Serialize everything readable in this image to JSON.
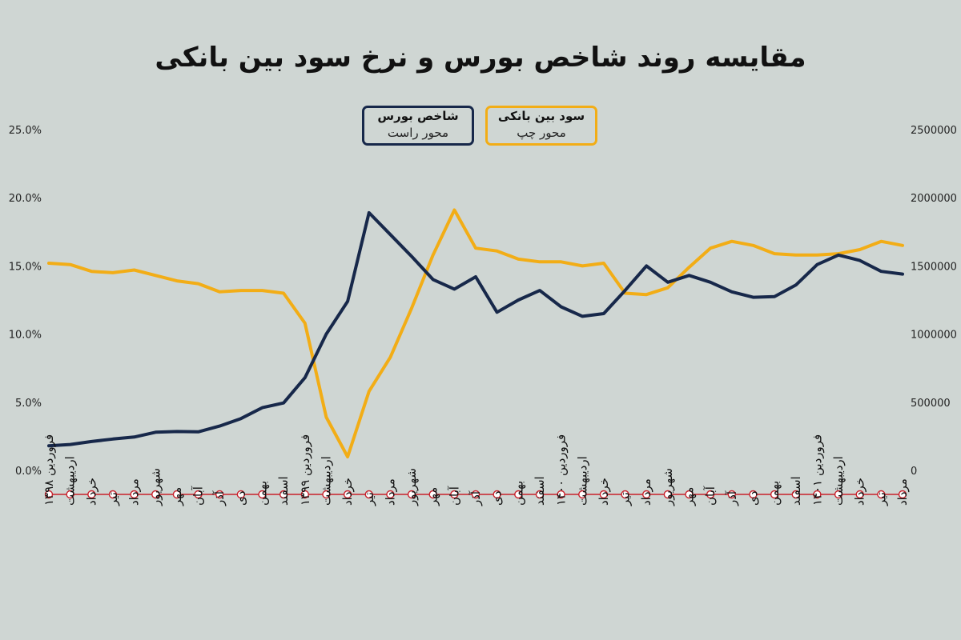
{
  "chart_data": {
    "type": "line",
    "title": "مقایسه روند شاخص بورس و نرخ سود بین بانکی",
    "categories": [
      "فروردین ۱۳۹۸",
      "اردیبهشت",
      "خرداد",
      "تیر",
      "مرداد",
      "شهریور",
      "مهر",
      "آبان",
      "آذر",
      "دی",
      "بهمن",
      "اسفند",
      "فروردین ۱۳۹۹",
      "اردیبهشت",
      "خرداد",
      "تیر",
      "مرداد",
      "شهریور",
      "مهر",
      "آبان",
      "آذر",
      "دی",
      "بهمن",
      "اسفند",
      "فروردین ۱۴۰۰",
      "اردیبهشت",
      "خرداد",
      "تیر",
      "مرداد",
      "شهریور",
      "مهر",
      "آبان",
      "آذر",
      "دی",
      "بهمن",
      "اسفند",
      "فروردین ۱۴۰۱",
      "اردیبهشت",
      "خرداد",
      "تیر",
      "مرداد"
    ],
    "left_axis": {
      "ticks": [
        "0.0%",
        "5.0%",
        "10.0%",
        "15.0%",
        "20.0%",
        "25.0%"
      ],
      "ylim": [
        0,
        25
      ]
    },
    "right_axis": {
      "ticks": [
        "0",
        "500000",
        "1000000",
        "1500000",
        "2000000",
        "2500000"
      ],
      "ylim": [
        0,
        2500000
      ]
    },
    "series": [
      {
        "name": "سود بین بانکی",
        "axis_note": "محور چپ",
        "axis": "left",
        "color": "#f2ad16",
        "values": [
          15.2,
          15.1,
          14.6,
          14.5,
          14.7,
          14.3,
          13.9,
          13.7,
          13.1,
          13.2,
          13.2,
          13.0,
          10.8,
          3.9,
          1.0,
          5.8,
          8.3,
          11.9,
          15.8,
          19.1,
          16.3,
          16.1,
          15.5,
          15.3,
          15.3,
          15.0,
          15.2,
          13.0,
          12.9,
          13.4,
          14.9,
          16.3,
          16.8,
          16.5,
          15.9,
          15.8,
          15.8,
          15.9,
          16.2,
          16.8,
          16.5
        ]
      },
      {
        "name": "شاخص بورس",
        "axis_note": "محور راست",
        "axis": "right",
        "color": "#17284a",
        "values": [
          180000,
          190000,
          212000,
          230000,
          245000,
          280000,
          285000,
          283000,
          325000,
          380000,
          460000,
          495000,
          680000,
          1000000,
          1240000,
          1890000,
          1730000,
          1570000,
          1400000,
          1330000,
          1420000,
          1160000,
          1250000,
          1320000,
          1200000,
          1130000,
          1150000,
          1320000,
          1500000,
          1380000,
          1430000,
          1380000,
          1310000,
          1270000,
          1275000,
          1360000,
          1510000,
          1580000,
          1540000,
          1460000,
          1440000
        ]
      }
    ],
    "grid": false,
    "legend": "top-center"
  }
}
